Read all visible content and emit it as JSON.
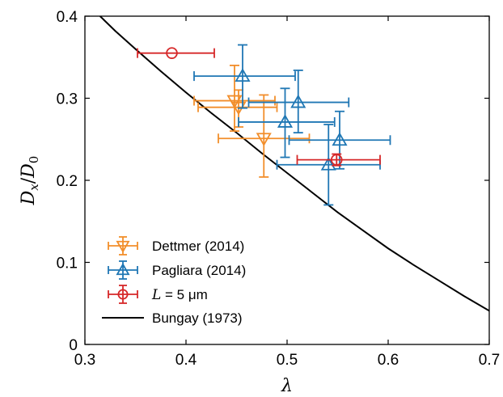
{
  "chart_data": {
    "type": "scatter",
    "title": "",
    "xlabel": "λ",
    "ylabel_main": "D",
    "ylabel_sub_num": "x",
    "ylabel_div": "/",
    "ylabel_den": "D",
    "ylabel_sub_den": "0",
    "xlim": [
      0.3,
      0.7
    ],
    "ylim": [
      0,
      0.4
    ],
    "xticks": [
      "0.3",
      "0.4",
      "0.5",
      "0.6",
      "0.7"
    ],
    "yticks": [
      "0",
      "0.1",
      "0.2",
      "0.3",
      "0.4"
    ],
    "xtick_values": [
      0.3,
      0.4,
      0.5,
      0.6,
      0.7
    ],
    "ytick_values": [
      0,
      0.1,
      0.2,
      0.3,
      0.4
    ],
    "grid": false,
    "legend_position": "bottom-left",
    "series": [
      {
        "name": "Dettmer (2014)",
        "marker": "triangle-down",
        "color": "#F28E2B",
        "points": [
          {
            "x": 0.448,
            "y": 0.297,
            "xerr": [
              0.408,
              0.488
            ],
            "yerr": [
              0.26,
              0.34
            ]
          },
          {
            "x": 0.452,
            "y": 0.289,
            "xerr": [
              0.412,
              0.49
            ],
            "yerr": [
              0.265,
              0.31
            ]
          },
          {
            "x": 0.477,
            "y": 0.251,
            "xerr": [
              0.432,
              0.522
            ],
            "yerr": [
              0.204,
              0.304
            ]
          }
        ]
      },
      {
        "name": "Pagliara (2014)",
        "marker": "triangle-up",
        "color": "#1F77B4",
        "points": [
          {
            "x": 0.456,
            "y": 0.327,
            "xerr": [
              0.408,
              0.508
            ],
            "yerr": [
              0.288,
              0.365
            ]
          },
          {
            "x": 0.498,
            "y": 0.271,
            "xerr": [
              0.452,
              0.547
            ],
            "yerr": [
              0.228,
              0.312
            ]
          },
          {
            "x": 0.511,
            "y": 0.295,
            "xerr": [
              0.462,
              0.561
            ],
            "yerr": [
              0.258,
              0.334
            ]
          },
          {
            "x": 0.541,
            "y": 0.219,
            "xerr": [
              0.49,
              0.592
            ],
            "yerr": [
              0.17,
              0.268
            ]
          },
          {
            "x": 0.552,
            "y": 0.249,
            "xerr": [
              0.502,
              0.602
            ],
            "yerr": [
              0.214,
              0.284
            ]
          }
        ]
      },
      {
        "name_prefix": "L",
        "name_suffix": " = 5 μm",
        "marker": "circle",
        "color": "#D62728",
        "points": [
          {
            "x": 0.386,
            "y": 0.355,
            "xerr": [
              0.352,
              0.428
            ],
            "yerr": [
              0.355,
              0.355
            ]
          },
          {
            "x": 0.549,
            "y": 0.225,
            "xerr": [
              0.51,
              0.592
            ],
            "yerr": [
              0.218,
              0.232
            ]
          }
        ]
      },
      {
        "name": "Bungay (1973)",
        "type": "line",
        "color": "#000000",
        "x": [
          0.315,
          0.33,
          0.35,
          0.375,
          0.4,
          0.425,
          0.45,
          0.475,
          0.5,
          0.525,
          0.55,
          0.575,
          0.6,
          0.625,
          0.65,
          0.675,
          0.7
        ],
        "y": [
          0.4,
          0.382,
          0.36,
          0.333,
          0.307,
          0.282,
          0.258,
          0.233,
          0.209,
          0.185,
          0.161,
          0.139,
          0.117,
          0.097,
          0.078,
          0.059,
          0.041
        ]
      }
    ]
  }
}
